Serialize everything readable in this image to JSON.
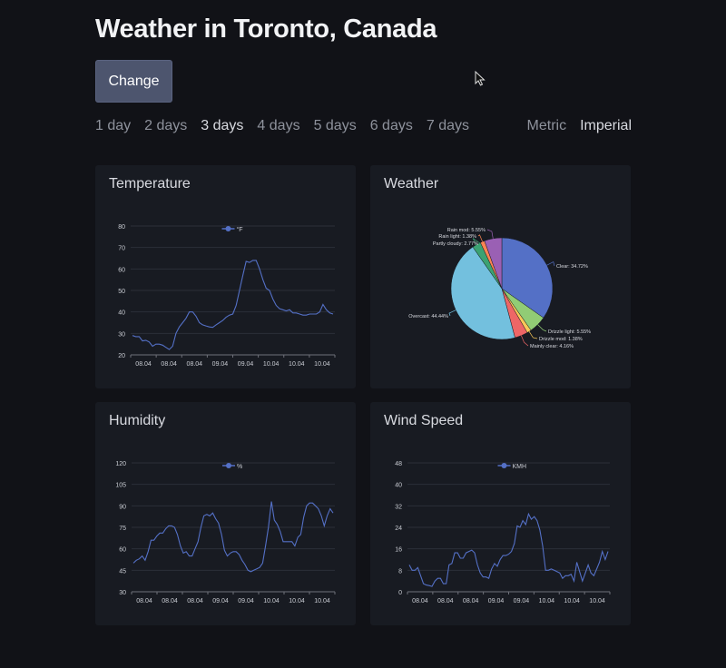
{
  "header": {
    "title": "Weather in Toronto, Canada",
    "change_label": "Change"
  },
  "day_options": [
    "1 day",
    "2 days",
    "3 days",
    "4 days",
    "5 days",
    "6 days",
    "7 days"
  ],
  "selected_days": "3 days",
  "unit_options": [
    "Metric",
    "Imperial"
  ],
  "selected_unit": "Imperial",
  "colors": {
    "line": "#5470c6",
    "background": "#111217",
    "card": "#181b22"
  },
  "cards": {
    "temperature": "Temperature",
    "weather": "Weather",
    "humidity": "Humidity",
    "wind": "Wind Speed"
  },
  "chart_data": [
    {
      "type": "line",
      "id": "temperature",
      "legend": "°F",
      "ylim": [
        20,
        80
      ],
      "yticks": [
        20,
        30,
        40,
        50,
        60,
        70,
        80
      ],
      "xtick_labels": [
        "08.04",
        "08.04",
        "08.04",
        "09.04",
        "09.04",
        "10.04",
        "10.04",
        "10.04"
      ],
      "values": [
        29,
        28.5,
        28.5,
        26.5,
        26.8,
        26,
        24,
        25,
        25,
        24.5,
        23.5,
        22.5,
        24,
        30,
        33,
        35,
        37,
        40,
        40,
        38,
        35,
        34,
        33.5,
        33,
        32.8,
        34,
        35,
        36,
        37.5,
        38.5,
        39,
        43,
        50,
        57,
        63.5,
        63,
        64,
        64,
        60,
        55,
        51,
        50,
        46,
        43,
        41.5,
        41,
        40.5,
        41,
        39.5,
        39.5,
        39,
        38.5,
        38.5,
        39,
        39,
        39,
        40,
        43.5,
        41,
        39.5,
        39
      ],
      "grid": true
    },
    {
      "type": "pie",
      "id": "weather",
      "slices": [
        {
          "name": "Clear",
          "value": 34.72,
          "color": "#5470c6"
        },
        {
          "name": "Drizzle light",
          "value": 5.55,
          "color": "#91cc75"
        },
        {
          "name": "Drizzle mod",
          "value": 1.38,
          "color": "#fac858"
        },
        {
          "name": "Mainly clear",
          "value": 4.16,
          "color": "#ee6666"
        },
        {
          "name": "Overcast",
          "value": 44.44,
          "color": "#73c0de"
        },
        {
          "name": "Partly cloudy",
          "value": 2.77,
          "color": "#3ba272"
        },
        {
          "name": "Rain light",
          "value": 1.38,
          "color": "#fc8452"
        },
        {
          "name": "Rain mod",
          "value": 5.55,
          "color": "#9a60b4"
        }
      ],
      "labels": [
        "Clear: 34.72%",
        "Drizzle light: 5.55%",
        "Drizzle mod: 1.38%",
        "Mainly clear: 4.16%",
        "Overcast: 44.44%",
        "Partly cloudy: 2.77%",
        "Rain light: 1.38%",
        "Rain mod: 5.55%"
      ]
    },
    {
      "type": "line",
      "id": "humidity",
      "legend": "%",
      "ylim": [
        30,
        120
      ],
      "yticks": [
        30,
        45,
        60,
        75,
        90,
        105,
        120
      ],
      "xtick_labels": [
        "08.04",
        "08.04",
        "08.04",
        "09.04",
        "09.04",
        "10.04",
        "10.04",
        "10.04"
      ],
      "values": [
        50,
        52,
        53,
        55,
        52,
        58,
        66,
        66,
        69,
        71,
        71,
        74,
        76,
        76,
        75,
        70,
        62,
        57,
        58,
        55,
        55,
        60,
        65,
        75,
        83,
        84,
        83,
        85,
        81,
        78,
        70,
        59,
        55,
        57,
        58,
        58,
        56,
        52,
        49,
        45,
        44,
        45,
        46,
        47,
        50,
        62,
        75,
        93,
        80,
        77,
        72,
        65,
        65,
        65,
        65,
        62,
        68,
        70,
        82,
        90,
        92,
        92,
        90,
        88,
        83,
        76,
        83,
        88,
        85
      ],
      "grid": true
    },
    {
      "type": "line",
      "id": "wind",
      "legend": "KMH",
      "ylim": [
        0,
        48
      ],
      "yticks": [
        0,
        8,
        16,
        24,
        32,
        40,
        48
      ],
      "xtick_labels": [
        "08.04",
        "08.04",
        "08.04",
        "09.04",
        "09.04",
        "10.04",
        "10.04",
        "10.04"
      ],
      "values": [
        10,
        8,
        8,
        9,
        6,
        3,
        2.5,
        2.3,
        2,
        4,
        5,
        5,
        3,
        3,
        10,
        10.5,
        14.5,
        14.5,
        12.5,
        12.5,
        14.5,
        15,
        15.5,
        14.5,
        10,
        7,
        5.5,
        5.5,
        5,
        8.5,
        10.5,
        9.5,
        12,
        13.5,
        13.5,
        14,
        15,
        18,
        24.5,
        24,
        26.5,
        25,
        29,
        27,
        28,
        26.5,
        23,
        17,
        8,
        8,
        8.5,
        8,
        7.5,
        7,
        5,
        6,
        6,
        6.5,
        4,
        11,
        7.5,
        4,
        7,
        10,
        7,
        6,
        8.5,
        11,
        15,
        12,
        15
      ],
      "grid": true
    }
  ]
}
